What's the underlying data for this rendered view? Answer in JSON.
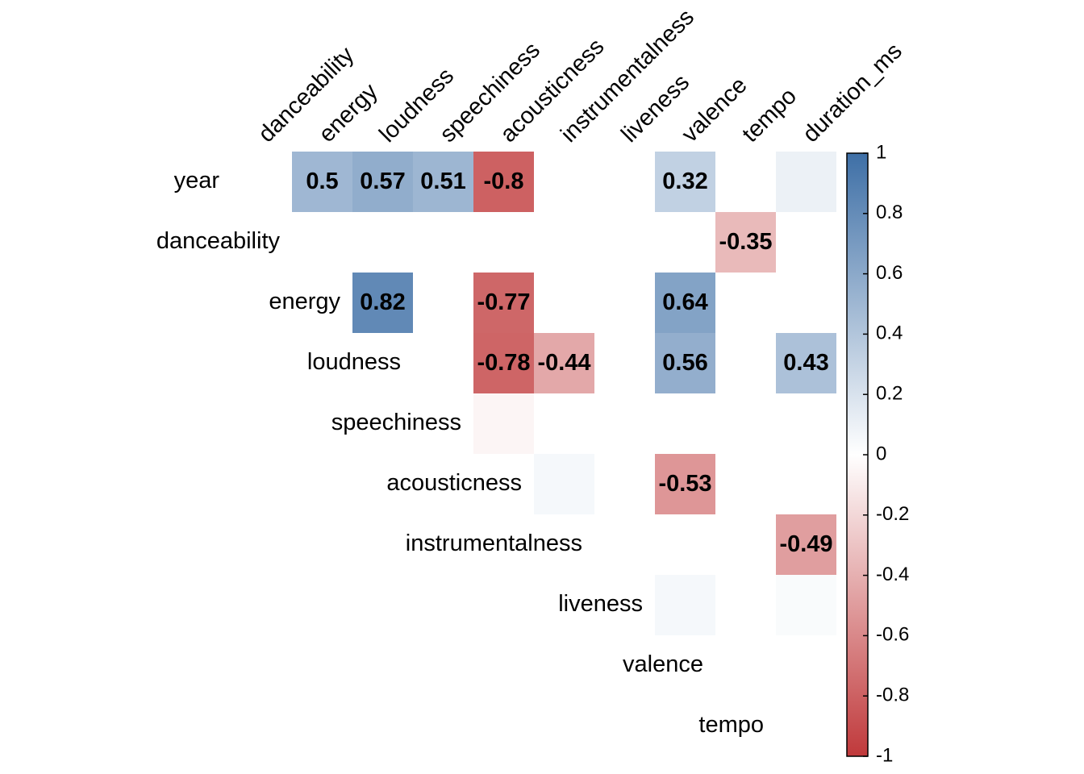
{
  "chart_data": {
    "type": "heatmap",
    "title": "",
    "columns": [
      "danceability",
      "energy",
      "loudness",
      "speechiness",
      "acousticness",
      "instrumentalness",
      "liveness",
      "valence",
      "tempo",
      "duration_ms"
    ],
    "rows": [
      "year",
      "danceability",
      "energy",
      "loudness",
      "speechiness",
      "acousticness",
      "instrumentalness",
      "liveness",
      "valence",
      "tempo"
    ],
    "layout": "upper-triangle",
    "cell_labels_shown": "significant only",
    "values": [
      [
        0.0,
        0.5,
        0.57,
        0.51,
        -0.8,
        0.0,
        0.0,
        0.32,
        0.0,
        0.1
      ],
      [
        0.0,
        0.0,
        0.0,
        0.0,
        0.0,
        0.0,
        0.0,
        -0.35,
        0.0
      ],
      [
        0.82,
        0.0,
        -0.77,
        0.0,
        0.0,
        0.64,
        0.0,
        0.0
      ],
      [
        0.0,
        -0.78,
        -0.44,
        0.0,
        0.56,
        0.0,
        0.43
      ],
      [
        -0.05,
        0.0,
        0.0,
        0.0,
        0.0,
        0.0
      ],
      [
        0.05,
        0.0,
        -0.53,
        0.0,
        0.0
      ],
      [
        0.0,
        0.0,
        0.0,
        -0.49
      ],
      [
        0.05,
        0.0,
        0.03
      ],
      [
        0.0,
        0.0
      ],
      [
        0.0
      ]
    ],
    "labels": [
      [
        "",
        "0.5",
        "0.57",
        "0.51",
        "-0.8",
        "",
        "",
        "0.32",
        "",
        ""
      ],
      [
        "",
        "",
        "",
        "",
        "",
        "",
        "",
        "-0.35",
        ""
      ],
      [
        "0.82",
        "",
        "-0.77",
        "",
        "",
        "0.64",
        "",
        ""
      ],
      [
        "",
        "-0.78",
        "-0.44",
        "",
        "0.56",
        "",
        "0.43"
      ],
      [
        "",
        "",
        "",
        "",
        "",
        ""
      ],
      [
        "",
        "",
        "-0.53",
        "",
        ""
      ],
      [
        "",
        "",
        "",
        "-0.49"
      ],
      [
        "",
        "",
        ""
      ],
      [
        "",
        ""
      ],
      [
        ""
      ]
    ],
    "colorbar": {
      "ticks": [
        "1",
        "0.8",
        "0.6",
        "0.4",
        "0.2",
        "0",
        "-0.2",
        "-0.4",
        "-0.6",
        "-0.8",
        "-1"
      ],
      "range": [
        -1,
        1
      ],
      "negative_color": "#C0393B",
      "neutral_color": "#FFFFFF",
      "positive_color": "#3E6FA6"
    }
  }
}
